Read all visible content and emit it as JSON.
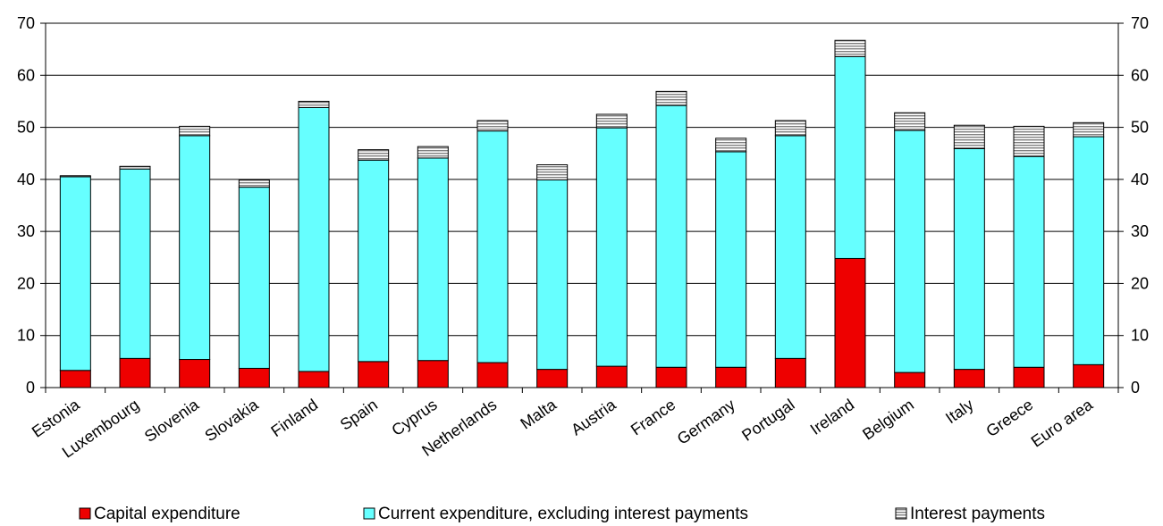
{
  "chart_data": {
    "type": "bar",
    "stacked": true,
    "categories": [
      "Estonia",
      "Luxembourg",
      "Slovenia",
      "Slovakia",
      "Finland",
      "Spain",
      "Cyprus",
      "Netherlands",
      "Malta",
      "Austria",
      "France",
      "Germany",
      "Portugal",
      "Ireland",
      "Belgium",
      "Italy",
      "Greece",
      "Euro area"
    ],
    "series": [
      {
        "name": "Capital expenditure",
        "color": "#ee0000",
        "values": [
          3.3,
          5.6,
          5.4,
          3.7,
          3.1,
          5.0,
          5.2,
          4.8,
          3.5,
          4.1,
          3.9,
          3.9,
          5.6,
          24.8,
          2.9,
          3.5,
          3.9,
          4.4
        ]
      },
      {
        "name": "Current expenditure, excluding interest payments",
        "color": "#66ffff",
        "values": [
          37.2,
          36.4,
          43.0,
          34.8,
          50.7,
          38.7,
          38.9,
          44.5,
          36.4,
          45.8,
          50.3,
          41.4,
          42.8,
          38.8,
          46.5,
          42.4,
          40.5,
          43.8
        ]
      },
      {
        "name": "Interest payments",
        "color": "#d0d0d0",
        "pattern": "horizontal-stripes",
        "values": [
          0.2,
          0.5,
          1.8,
          1.4,
          1.2,
          2.0,
          2.2,
          2.0,
          2.9,
          2.6,
          2.7,
          2.6,
          2.9,
          3.1,
          3.4,
          4.5,
          5.8,
          2.7
        ]
      }
    ],
    "ylim": [
      0,
      70
    ],
    "yticks": [
      0,
      10,
      20,
      30,
      40,
      50,
      60,
      70
    ],
    "axes": "left-and-right",
    "grid": true,
    "legend": "bottom"
  }
}
